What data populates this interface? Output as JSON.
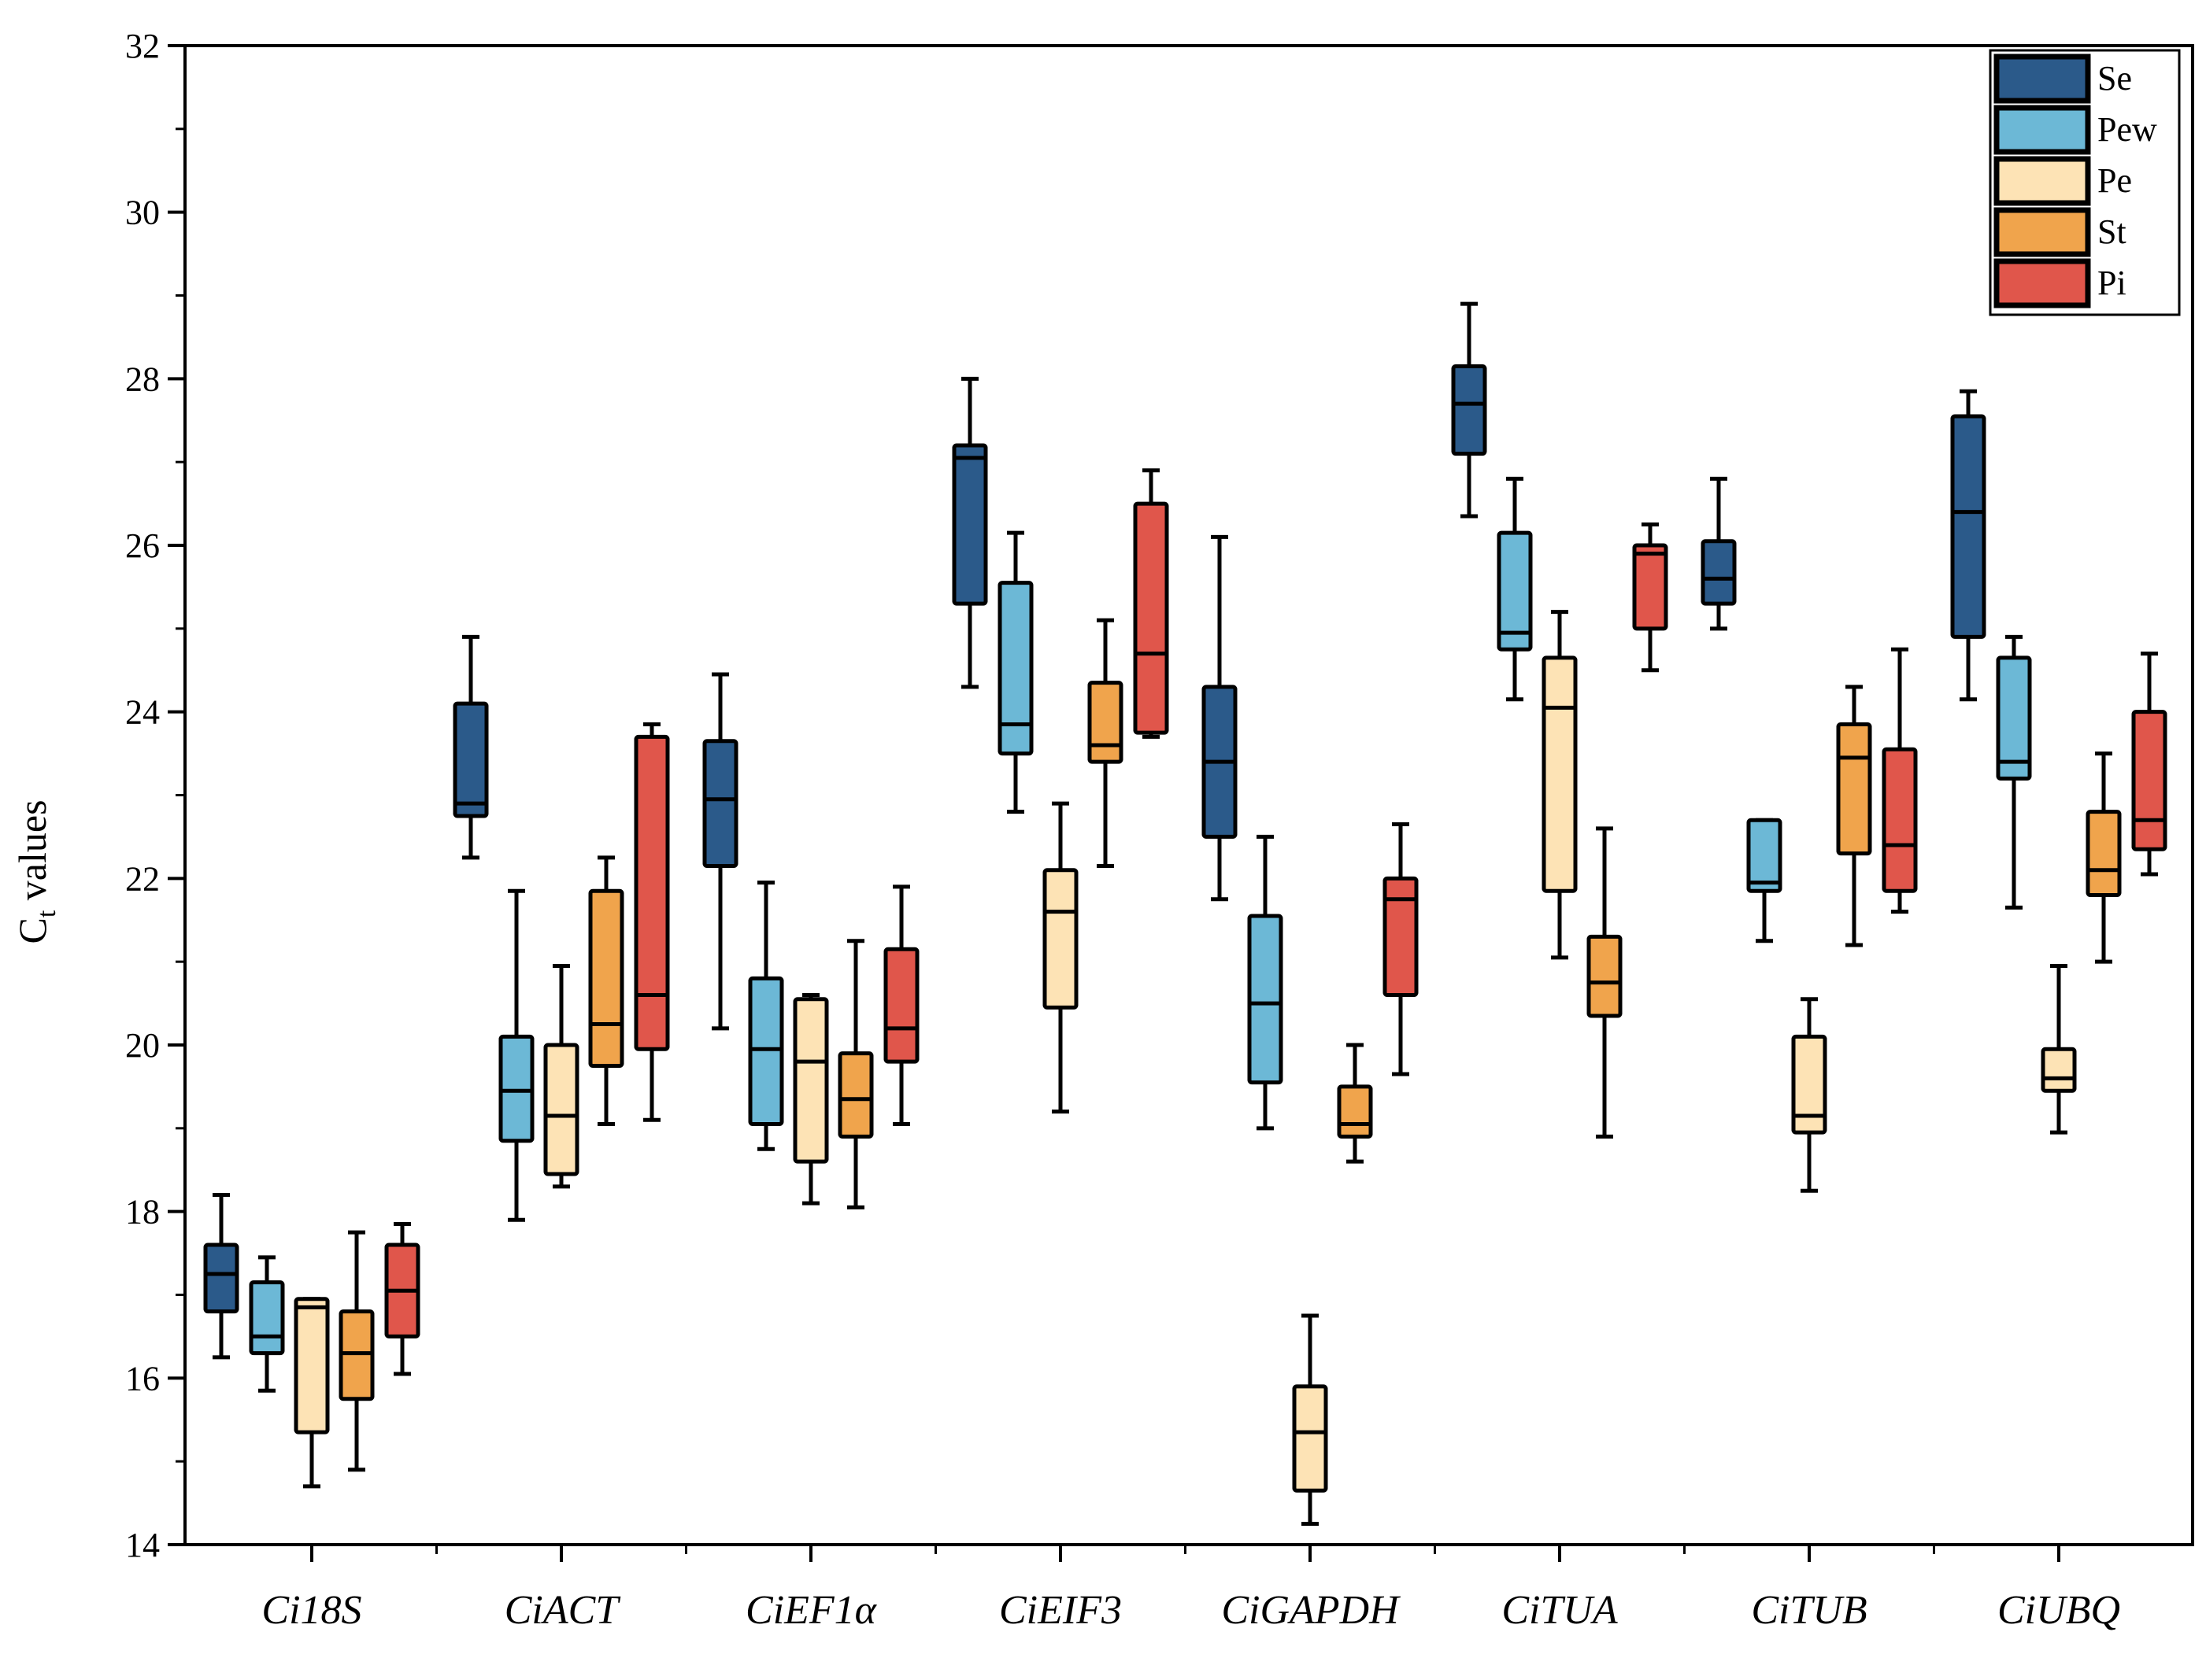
{
  "chart_data": {
    "type": "box",
    "title": "",
    "xlabel": "",
    "ylabel": {
      "main": "C",
      "subscript": "t",
      "rest": " values"
    },
    "ylim": [
      14,
      32
    ],
    "y_ticks": [
      14,
      16,
      18,
      20,
      22,
      24,
      26,
      28,
      30,
      32
    ],
    "y_tick_labels": [
      "14",
      "16",
      "18",
      "20",
      "22",
      "24",
      "26",
      "28",
      "30",
      "32"
    ],
    "y_minor_step": 1,
    "legend_position": "top-right",
    "categories": [
      "Ci18S",
      "CiACT",
      "CiEF1α",
      "CiEIF3",
      "CiGAPDH",
      "CiTUA",
      "CiTUB",
      "CiUBQ"
    ],
    "series": [
      {
        "name": "Se",
        "color": "#2b5a8a",
        "boxes": [
          {
            "min": 16.25,
            "q1": 16.8,
            "median": 17.25,
            "q3": 17.6,
            "max": 18.2
          },
          {
            "min": 22.25,
            "q1": 22.75,
            "median": 22.9,
            "q3": 24.1,
            "max": 24.9
          },
          {
            "min": 20.2,
            "q1": 22.15,
            "median": 22.95,
            "q3": 23.65,
            "max": 24.45
          },
          {
            "min": 24.3,
            "q1": 25.3,
            "median": 27.05,
            "q3": 27.2,
            "max": 28.0
          },
          {
            "min": 21.75,
            "q1": 22.5,
            "median": 23.4,
            "q3": 24.3,
            "max": 26.1
          },
          {
            "min": 26.35,
            "q1": 27.1,
            "median": 27.7,
            "q3": 28.15,
            "max": 28.9
          },
          {
            "min": 25.0,
            "q1": 25.3,
            "median": 25.6,
            "q3": 26.05,
            "max": 26.8
          },
          {
            "min": 24.15,
            "q1": 24.9,
            "median": 26.4,
            "q3": 27.55,
            "max": 27.85
          }
        ]
      },
      {
        "name": "Pew",
        "color": "#6cb8d6",
        "boxes": [
          {
            "min": 15.85,
            "q1": 16.3,
            "median": 16.5,
            "q3": 17.15,
            "max": 17.45
          },
          {
            "min": 17.9,
            "q1": 18.85,
            "median": 19.45,
            "q3": 20.1,
            "max": 21.85
          },
          {
            "min": 18.75,
            "q1": 19.05,
            "median": 19.95,
            "q3": 20.8,
            "max": 21.95
          },
          {
            "min": 22.8,
            "q1": 23.5,
            "median": 23.85,
            "q3": 25.55,
            "max": 26.15
          },
          {
            "min": 19.0,
            "q1": 19.55,
            "median": 20.5,
            "q3": 21.55,
            "max": 22.5
          },
          {
            "min": 24.15,
            "q1": 24.75,
            "median": 24.95,
            "q3": 26.15,
            "max": 26.8
          },
          {
            "min": 21.25,
            "q1": 21.85,
            "median": 21.95,
            "q3": 22.7,
            "max": 22.7
          },
          {
            "min": 21.65,
            "q1": 23.2,
            "median": 23.4,
            "q3": 24.65,
            "max": 24.9
          }
        ]
      },
      {
        "name": "Pe",
        "color": "#fde3b5",
        "boxes": [
          {
            "min": 14.7,
            "q1": 15.35,
            "median": 16.85,
            "q3": 16.95,
            "max": 16.95
          },
          {
            "min": 18.3,
            "q1": 18.45,
            "median": 19.15,
            "q3": 20.0,
            "max": 20.95
          },
          {
            "min": 18.1,
            "q1": 18.6,
            "median": 19.8,
            "q3": 20.55,
            "max": 20.6
          },
          {
            "min": 19.2,
            "q1": 20.45,
            "median": 21.6,
            "q3": 22.1,
            "max": 22.9
          },
          {
            "min": 14.25,
            "q1": 14.65,
            "median": 15.35,
            "q3": 15.9,
            "max": 16.75
          },
          {
            "min": 21.05,
            "q1": 21.85,
            "median": 24.05,
            "q3": 24.65,
            "max": 25.2
          },
          {
            "min": 18.25,
            "q1": 18.95,
            "median": 19.15,
            "q3": 20.1,
            "max": 20.55
          },
          {
            "min": 18.95,
            "q1": 19.45,
            "median": 19.6,
            "q3": 19.95,
            "max": 20.95
          }
        ]
      },
      {
        "name": "St",
        "color": "#f0a44c",
        "boxes": [
          {
            "min": 14.9,
            "q1": 15.75,
            "median": 16.3,
            "q3": 16.8,
            "max": 17.75
          },
          {
            "min": 19.05,
            "q1": 19.75,
            "median": 20.25,
            "q3": 21.85,
            "max": 22.25
          },
          {
            "min": 18.05,
            "q1": 18.9,
            "median": 19.35,
            "q3": 19.9,
            "max": 21.25
          },
          {
            "min": 22.15,
            "q1": 23.4,
            "median": 23.6,
            "q3": 24.35,
            "max": 25.1
          },
          {
            "min": 18.6,
            "q1": 18.9,
            "median": 19.05,
            "q3": 19.5,
            "max": 20.0
          },
          {
            "min": 18.9,
            "q1": 20.35,
            "median": 20.75,
            "q3": 21.3,
            "max": 22.6
          },
          {
            "min": 21.2,
            "q1": 22.3,
            "median": 23.45,
            "q3": 23.85,
            "max": 24.3
          },
          {
            "min": 21.0,
            "q1": 21.8,
            "median": 22.1,
            "q3": 22.8,
            "max": 23.5
          }
        ]
      },
      {
        "name": "Pi",
        "color": "#e0564b",
        "boxes": [
          {
            "min": 16.05,
            "q1": 16.5,
            "median": 17.05,
            "q3": 17.6,
            "max": 17.85
          },
          {
            "min": 19.1,
            "q1": 19.95,
            "median": 20.6,
            "q3": 23.7,
            "max": 23.85
          },
          {
            "min": 19.05,
            "q1": 19.8,
            "median": 20.2,
            "q3": 21.15,
            "max": 21.9
          },
          {
            "min": 23.7,
            "q1": 23.75,
            "median": 24.7,
            "q3": 26.5,
            "max": 26.9
          },
          {
            "min": 19.65,
            "q1": 20.6,
            "median": 21.75,
            "q3": 22.0,
            "max": 22.65
          },
          {
            "min": 24.5,
            "q1": 25.0,
            "median": 25.9,
            "q3": 26.0,
            "max": 26.25
          },
          {
            "min": 21.6,
            "q1": 21.85,
            "median": 22.4,
            "q3": 23.55,
            "max": 24.75
          },
          {
            "min": 22.05,
            "q1": 22.35,
            "median": 22.7,
            "q3": 24.0,
            "max": 24.7
          }
        ]
      }
    ]
  }
}
